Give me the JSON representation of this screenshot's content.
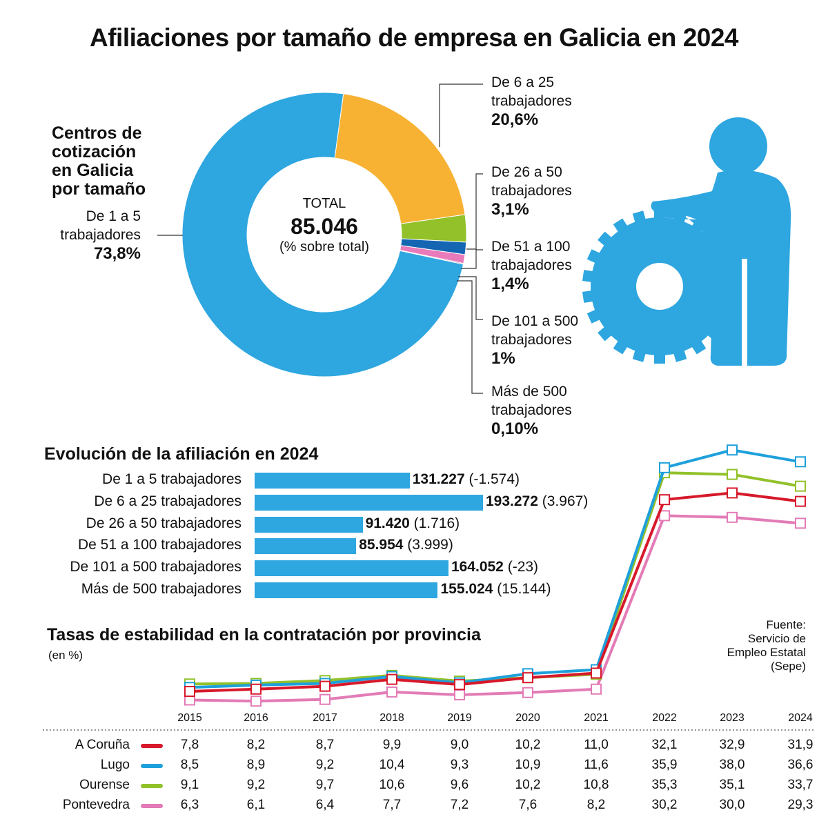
{
  "title": "Afiliaciones por tamaño de empresa en Galicia en 2024",
  "donut": {
    "subtitle_lines": [
      "Centros de",
      "cotización",
      "en Galicia",
      "por tamaño"
    ],
    "center_label": "TOTAL",
    "center_value": "85.046",
    "center_note": "(% sobre total)"
  },
  "colors": {
    "blue": "#2ea6e0",
    "orange": "#f7b233",
    "green": "#92c12a",
    "darkblue": "#1466b3",
    "pink": "#e97bbb",
    "red": "#d7192b",
    "lugo_line": "#1ea0db",
    "pontevedra_line": "#e37bb6"
  },
  "bars_section": {
    "title": "Evolución de la afiliación en 2024"
  },
  "line_section": {
    "title": "Tasas de estabilidad en la contratación por provincia",
    "subtitle": "(en %)",
    "source_lines": [
      "Fuente:",
      "Servicio de",
      "Empleo Estatal",
      "(Sepe)"
    ]
  },
  "chart_data": [
    {
      "type": "pie",
      "title": "Centros de cotización en Galicia por tamaño",
      "total": "85.046",
      "slices": [
        {
          "label_lines": [
            "De 1 a 5",
            "trabajadores"
          ],
          "value": 73.8,
          "display": "73,8%",
          "color": "#2ea6e0"
        },
        {
          "label_lines": [
            "De 6 a 25",
            "trabajadores"
          ],
          "value": 20.6,
          "display": "20,6%",
          "color": "#f7b233"
        },
        {
          "label_lines": [
            "De 26 a 50",
            "trabajadores"
          ],
          "value": 3.1,
          "display": "3,1%",
          "color": "#92c12a"
        },
        {
          "label_lines": [
            "De 51 a 100",
            "trabajadores"
          ],
          "value": 1.4,
          "display": "1,4%",
          "color": "#1466b3"
        },
        {
          "label_lines": [
            "De 101 a 500",
            "trabajadores"
          ],
          "value": 1.0,
          "display": "1%",
          "color": "#e97bbb"
        },
        {
          "label_lines": [
            "Más de 500",
            "trabajadores"
          ],
          "value": 0.1,
          "display": "0,10%",
          "color": "#d7192b"
        }
      ]
    },
    {
      "type": "bar",
      "title": "Evolución de la afiliación en 2024",
      "orientation": "horizontal",
      "categories": [
        "De 1 a 5 trabajadores",
        "De 6 a 25 trabajadores",
        "De 26 a 50 trabajadores",
        "De 51 a 100 trabajadores",
        "De 101 a 500 trabajadores",
        "Más de 500 trabajadores"
      ],
      "values": [
        131227,
        193272,
        91420,
        85954,
        164052,
        155024
      ],
      "value_labels": [
        "131.227",
        "193.272",
        "91.420",
        "85.954",
        "164.052",
        "155.024"
      ],
      "change_labels": [
        "(-1.574)",
        "(3.967)",
        "(1.716)",
        "(3.999)",
        "(-23)",
        "(15.144)"
      ]
    },
    {
      "type": "line",
      "title": "Tasas de estabilidad en la contratación por provincia",
      "ylabel": "(en %)",
      "x": [
        "2015",
        "2016",
        "2017",
        "2018",
        "2019",
        "2020",
        "2021",
        "2022",
        "2023",
        "2024"
      ],
      "series": [
        {
          "name": "A Coruña",
          "color": "#d7192b",
          "values": [
            7.8,
            8.2,
            8.7,
            9.9,
            9.0,
            10.2,
            11.0,
            32.1,
            32.9,
            31.9
          ],
          "labels": [
            "7,8",
            "8,2",
            "8,7",
            "9,9",
            "9,0",
            "10,2",
            "11,0",
            "32,1",
            "32,9",
            "31,9"
          ]
        },
        {
          "name": "Lugo",
          "color": "#1ea0db",
          "values": [
            8.5,
            8.9,
            9.2,
            10.4,
            9.3,
            10.9,
            11.6,
            35.9,
            38.0,
            36.6
          ],
          "labels": [
            "8,5",
            "8,9",
            "9,2",
            "10,4",
            "9,3",
            "10,9",
            "11,6",
            "35,9",
            "38,0",
            "36,6"
          ]
        },
        {
          "name": "Ourense",
          "color": "#92c12a",
          "values": [
            9.1,
            9.2,
            9.7,
            10.6,
            9.6,
            10.2,
            10.8,
            35.3,
            35.1,
            33.7
          ],
          "labels": [
            "9,1",
            "9,2",
            "9,7",
            "10,6",
            "9,6",
            "10,2",
            "10,8",
            "35,3",
            "35,1",
            "33,7"
          ]
        },
        {
          "name": "Pontevedra",
          "color": "#e37bb6",
          "values": [
            6.3,
            6.1,
            6.4,
            7.7,
            7.2,
            7.6,
            8.2,
            30.2,
            30.0,
            29.3
          ],
          "labels": [
            "6,3",
            "6,1",
            "6,4",
            "7,7",
            "7,2",
            "7,6",
            "8,2",
            "30,2",
            "30,0",
            "29,3"
          ]
        }
      ]
    }
  ]
}
